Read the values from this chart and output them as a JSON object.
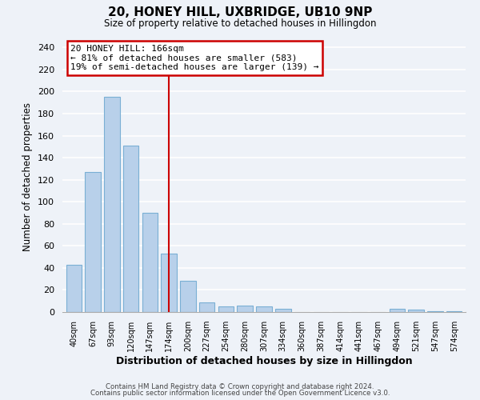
{
  "title": "20, HONEY HILL, UXBRIDGE, UB10 9NP",
  "subtitle": "Size of property relative to detached houses in Hillingdon",
  "xlabel": "Distribution of detached houses by size in Hillingdon",
  "ylabel": "Number of detached properties",
  "bin_labels": [
    "40sqm",
    "67sqm",
    "93sqm",
    "120sqm",
    "147sqm",
    "174sqm",
    "200sqm",
    "227sqm",
    "254sqm",
    "280sqm",
    "307sqm",
    "334sqm",
    "360sqm",
    "387sqm",
    "414sqm",
    "441sqm",
    "467sqm",
    "494sqm",
    "521sqm",
    "547sqm",
    "574sqm"
  ],
  "bin_values": [
    43,
    127,
    195,
    151,
    90,
    53,
    28,
    9,
    5,
    6,
    5,
    3,
    0,
    0,
    0,
    0,
    0,
    3,
    2,
    1,
    1
  ],
  "bar_color": "#b8d0ea",
  "bar_edge_color": "#7aafd4",
  "property_line_x": 5,
  "property_line_color": "#cc0000",
  "annotation_title": "20 HONEY HILL: 166sqm",
  "annotation_line1": "← 81% of detached houses are smaller (583)",
  "annotation_line2": "19% of semi-detached houses are larger (139) →",
  "annotation_box_color": "#ffffff",
  "annotation_box_edge": "#cc0000",
  "yticks": [
    0,
    20,
    40,
    60,
    80,
    100,
    120,
    140,
    160,
    180,
    200,
    220,
    240
  ],
  "ylim": [
    0,
    245
  ],
  "footer1": "Contains HM Land Registry data © Crown copyright and database right 2024.",
  "footer2": "Contains public sector information licensed under the Open Government Licence v3.0.",
  "background_color": "#eef2f8"
}
